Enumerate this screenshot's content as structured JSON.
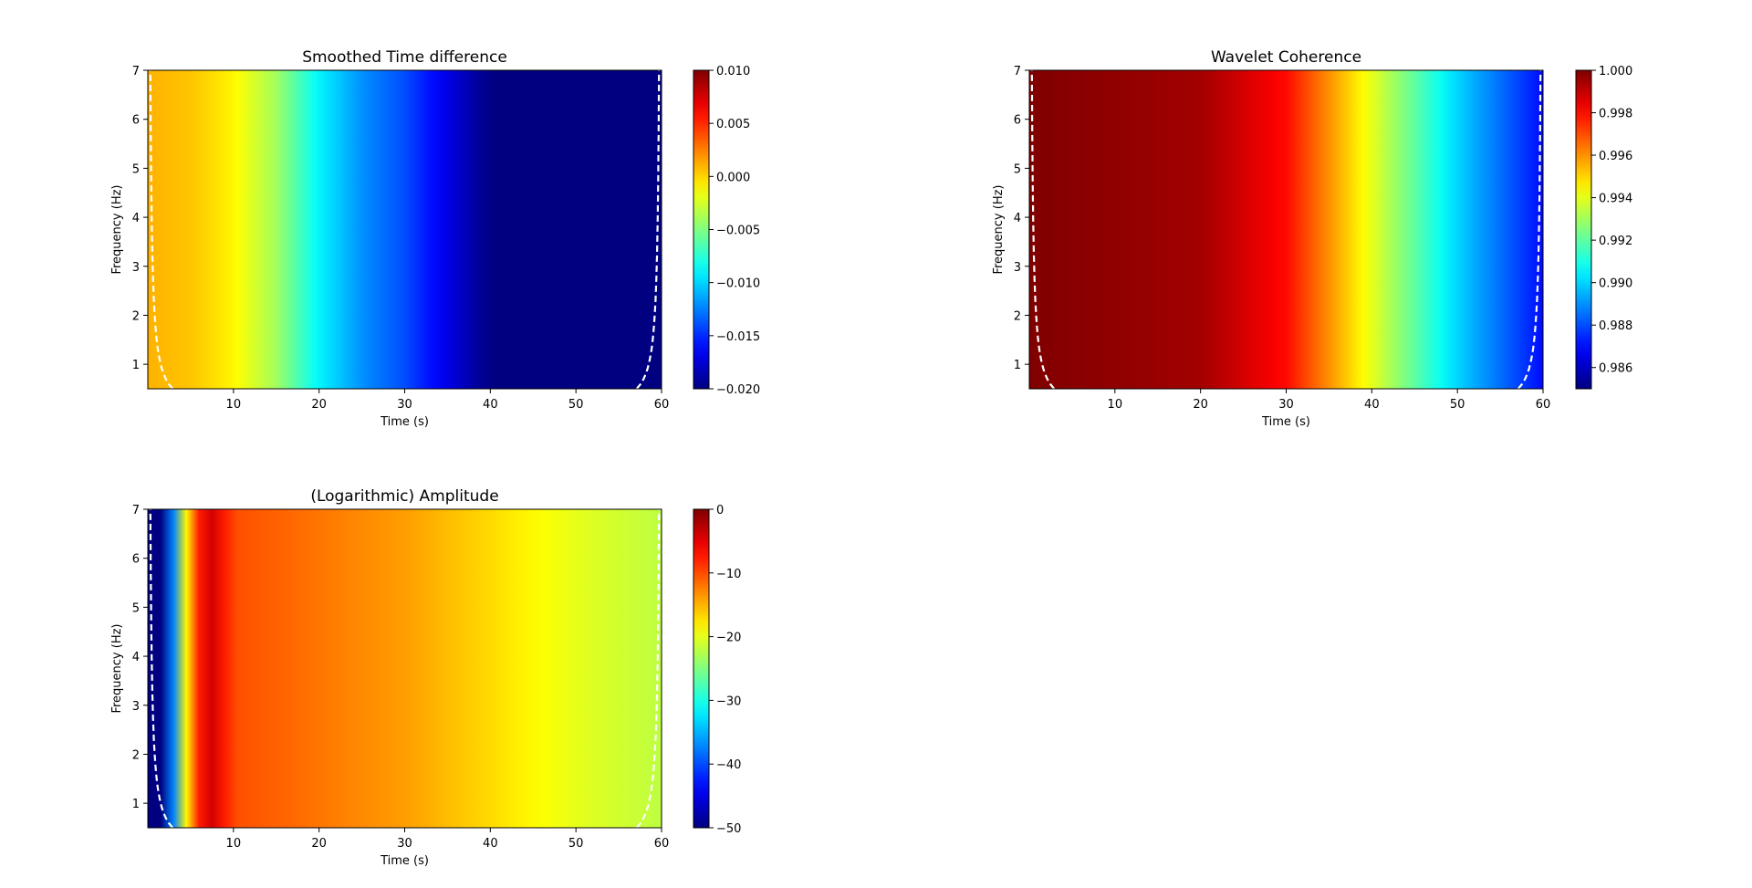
{
  "chart_data": [
    {
      "type": "heatmap",
      "title": "Smoothed Time difference",
      "xlabel": "Time (s)",
      "ylabel": "Frequency (Hz)",
      "xlim": [
        0,
        60
      ],
      "ylim": [
        0.5,
        7
      ],
      "x_ticks": [
        10,
        20,
        30,
        40,
        50,
        60
      ],
      "y_ticks": [
        1,
        2,
        3,
        4,
        5,
        6,
        7
      ],
      "colormap": "jet",
      "clim": [
        -0.02,
        0.01
      ],
      "colorbar_ticks": [
        0.01,
        0.005,
        0.0,
        -0.005,
        -0.01,
        -0.015,
        -0.02
      ],
      "colorbar_tick_labels": [
        "0.010",
        "0.005",
        "0.000",
        "−0.005",
        "−0.010",
        "−0.015",
        "−0.020"
      ],
      "cone_of_influence": "white dashed",
      "value_profile": {
        "time_s": [
          0,
          5,
          10,
          15,
          20,
          25,
          30,
          35,
          40,
          60
        ],
        "value": [
          0.001,
          0.0005,
          -0.001,
          -0.004,
          -0.009,
          -0.012,
          -0.014,
          -0.017,
          -0.02,
          -0.02
        ]
      }
    },
    {
      "type": "heatmap",
      "title": "Wavelet Coherence",
      "xlabel": "Time (s)",
      "ylabel": "Frequency (Hz)",
      "xlim": [
        0,
        60
      ],
      "ylim": [
        0.5,
        7
      ],
      "x_ticks": [
        10,
        20,
        30,
        40,
        50,
        60
      ],
      "y_ticks": [
        1,
        2,
        3,
        4,
        5,
        6,
        7
      ],
      "colormap": "jet",
      "clim": [
        0.985,
        1.0
      ],
      "colorbar_ticks": [
        1.0,
        0.998,
        0.996,
        0.994,
        0.992,
        0.99,
        0.988,
        0.986
      ],
      "colorbar_tick_labels": [
        "1.000",
        "0.998",
        "0.996",
        "0.994",
        "0.992",
        "0.990",
        "0.988",
        "0.986"
      ],
      "cone_of_influence": "white dashed",
      "value_profile": {
        "time_s": [
          0,
          20,
          30,
          40,
          50,
          60
        ],
        "value": [
          1.0,
          0.9995,
          0.998,
          0.994,
          0.99,
          0.987
        ]
      }
    },
    {
      "type": "heatmap",
      "title": "(Logarithmic) Amplitude",
      "xlabel": "Time (s)",
      "ylabel": "Frequency (Hz)",
      "xlim": [
        0,
        60
      ],
      "ylim": [
        0.5,
        7
      ],
      "x_ticks": [
        10,
        20,
        30,
        40,
        50,
        60
      ],
      "y_ticks": [
        1,
        2,
        3,
        4,
        5,
        6,
        7
      ],
      "colormap": "jet",
      "clim": [
        -50,
        0
      ],
      "colorbar_ticks": [
        0,
        -10,
        -20,
        -30,
        -40,
        -50
      ],
      "colorbar_tick_labels": [
        "0",
        "−10",
        "−20",
        "−30",
        "−40",
        "−50"
      ],
      "cone_of_influence": "white dashed",
      "value_profile": {
        "time_s": [
          0,
          2,
          5,
          7,
          10,
          20,
          30,
          40,
          50,
          60
        ],
        "value": [
          -50,
          -50,
          -12,
          -3,
          -10,
          -12,
          -14,
          -17,
          -20,
          -22
        ]
      }
    }
  ]
}
